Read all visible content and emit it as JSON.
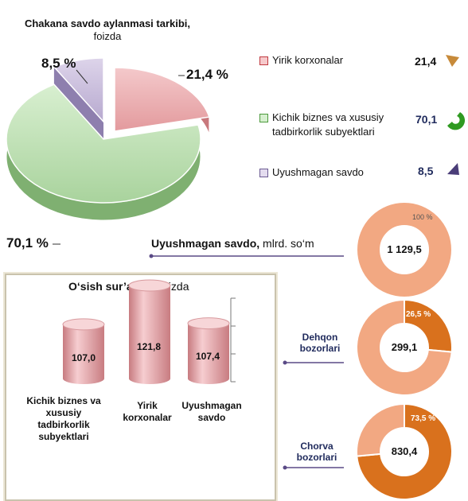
{
  "pie": {
    "title_bold": "Chakana savdo aylanmasi tarkibi,",
    "title_unit": "foizda",
    "labels": {
      "a": "21,4 %",
      "b": "70,1 %",
      "c": "8,5 %"
    }
  },
  "legend": [
    {
      "label": "Yirik korxonalar",
      "value": "21,4",
      "color": "#e8a3a6"
    },
    {
      "label": "Kichik biznes va xususiy tadbirkorlik subyektlari",
      "value": "70,1",
      "color": "#b8dcae"
    },
    {
      "label": "Uyushmagan savdo",
      "value": "8,5",
      "color": "#c4b8d8"
    }
  ],
  "uyushmagan": {
    "title_bold": "Uyushmagan savdo,",
    "title_unit": "mlrd. so‘m"
  },
  "donuts": [
    {
      "center": "1 129,5",
      "pct_label": "100 %",
      "caption": ""
    },
    {
      "center": "299,1",
      "pct_label": "26,5 %",
      "caption": "Dehqon bozorlari"
    },
    {
      "center": "830,4",
      "pct_label": "73,5 %",
      "caption": "Chorva bozorlari"
    }
  ],
  "growth": {
    "title_bold": "O‘sish sur’atlari,",
    "title_unit": "foizda",
    "items": [
      {
        "value": "107,0",
        "label": "Kichik biznes va xususiy tadbirkorlik subyektlari"
      },
      {
        "value": "121,8",
        "label": "Yirik korxonalar"
      },
      {
        "value": "107,4",
        "label": "Uyushmagan savdo"
      }
    ]
  },
  "colors": {
    "pie_red": "#e8a3a6",
    "pie_green": "#b8dcae",
    "pie_purple": "#c4b8d8",
    "donut_light": "#f2a882",
    "donut_dark": "#d9711d",
    "accent_line": "#5a4a86",
    "cylinder": "#e8a3a6"
  },
  "chart_data": [
    {
      "type": "pie",
      "title": "Chakana savdo aylanmasi tarkibi, foizda",
      "categories": [
        "Yirik korxonalar",
        "Kichik biznes va xususiy tadbirkorlik subyektlari",
        "Uyushmagan savdo"
      ],
      "values": [
        21.4,
        70.1,
        8.5
      ]
    },
    {
      "type": "pie",
      "title": "Uyushmagan savdo, mlrd. so‘m",
      "categories": [
        "Dehqon bozorlari",
        "Chorva bozorlari"
      ],
      "total": 1129.5,
      "values": [
        299.1,
        830.4
      ],
      "shares": [
        26.5,
        73.5
      ]
    },
    {
      "type": "bar",
      "title": "O‘sish sur’atlari, foizda",
      "categories": [
        "Kichik biznes va xususiy tadbirkorlik subyektlari",
        "Yirik korxonalar",
        "Uyushmagan savdo"
      ],
      "values": [
        107.0,
        121.8,
        107.4
      ]
    }
  ]
}
